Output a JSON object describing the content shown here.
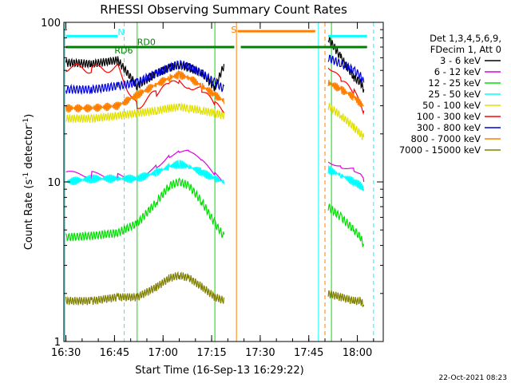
{
  "chart_data": {
    "type": "line",
    "title": "RHESSI Observing Summary Count Rates",
    "xlabel": "Start Time (16-Sep-13 16:29:22)",
    "ylabel_main": "Count Rate (s",
    "ylabel_sup": "-1",
    "ylabel_tail": " detector",
    "ylabel_close": ")",
    "y_scale": "log",
    "ylim": [
      1,
      100
    ],
    "xlim": [
      "16:29:22",
      "18:08:00"
    ],
    "x_ticks": [
      "16:30",
      "16:45",
      "17:00",
      "17:15",
      "17:30",
      "17:45",
      "18:00"
    ],
    "y_ticks": [
      "1",
      "10",
      "100"
    ],
    "legend_header": [
      "Det 1,3,4,5,6,9,",
      "FDecim 1, Att 0"
    ],
    "legend_position": "right",
    "series": [
      {
        "name": "3 - 6 keV",
        "color": "#000000",
        "t": [
          "16:30",
          "16:38",
          "16:46",
          "16:52",
          "16:58",
          "17:02",
          "17:05",
          "17:08",
          "17:12",
          "17:16",
          "17:19",
          "17:51",
          "17:55",
          "17:59",
          "18:01",
          "18:02"
        ],
        "values": [
          56,
          55,
          58,
          40,
          48,
          52,
          54,
          52,
          48,
          39,
          55,
          80,
          60,
          45,
          42,
          38
        ]
      },
      {
        "name": "6 - 12 keV",
        "color": "#e000e0",
        "t": [
          "16:30",
          "16:38",
          "16:46",
          "16:52",
          "16:58",
          "17:02",
          "17:05",
          "17:08",
          "17:12",
          "17:16",
          "17:19",
          "17:51",
          "17:55",
          "17:59",
          "18:01",
          "18:02"
        ],
        "values": [
          11,
          11,
          11,
          11,
          13,
          15,
          15.5,
          15,
          13,
          11,
          10,
          14,
          13,
          12,
          11,
          10
        ]
      },
      {
        "name": "12 - 25 keV",
        "color": "#00e000",
        "t": [
          "16:30",
          "16:38",
          "16:46",
          "16:52",
          "16:58",
          "17:02",
          "17:05",
          "17:08",
          "17:12",
          "17:16",
          "17:19",
          "17:51",
          "17:55",
          "17:59",
          "18:01",
          "18:02"
        ],
        "values": [
          4.5,
          4.6,
          4.8,
          5.5,
          7.5,
          9.5,
          10,
          9.5,
          7.5,
          5.5,
          4.5,
          7,
          6,
          5,
          4.5,
          4
        ]
      },
      {
        "name": "25 - 50 keV",
        "color": "#00ffff",
        "t": [
          "16:30",
          "16:38",
          "16:46",
          "16:52",
          "16:58",
          "17:02",
          "17:05",
          "17:08",
          "17:12",
          "17:16",
          "17:19",
          "17:51",
          "17:55",
          "17:59",
          "18:01",
          "18:02"
        ],
        "values": [
          10,
          10.5,
          10.5,
          10.5,
          11.5,
          12.5,
          13,
          12.5,
          11.5,
          10.5,
          10,
          12,
          11,
          10,
          9.5,
          9
        ]
      },
      {
        "name": "50 - 100 keV",
        "color": "#e0e000",
        "t": [
          "16:30",
          "16:38",
          "16:46",
          "16:52",
          "16:58",
          "17:02",
          "17:05",
          "17:08",
          "17:12",
          "17:16",
          "17:19",
          "17:51",
          "17:55",
          "17:59",
          "18:01",
          "18:02"
        ],
        "values": [
          25,
          25,
          26,
          27,
          28,
          29,
          29.5,
          29,
          28,
          27,
          26,
          30,
          26,
          22,
          20,
          19
        ]
      },
      {
        "name": "100 - 300 keV",
        "color": "#ff0000",
        "t": [
          "16:30",
          "16:38",
          "16:46",
          "16:52",
          "16:58",
          "17:02",
          "17:05",
          "17:08",
          "17:12",
          "17:16",
          "17:19",
          "17:51",
          "17:55",
          "17:59",
          "18:01",
          "18:02"
        ],
        "values": [
          52,
          51,
          52,
          30,
          36,
          40,
          42,
          41,
          37,
          30,
          28,
          55,
          42,
          36,
          32,
          28
        ]
      },
      {
        "name": "300 - 800 keV",
        "color": "#0000e0",
        "t": [
          "16:30",
          "16:38",
          "16:46",
          "16:52",
          "16:58",
          "17:02",
          "17:05",
          "17:08",
          "17:12",
          "17:16",
          "17:19",
          "17:51",
          "17:55",
          "17:59",
          "18:01",
          "18:02"
        ],
        "values": [
          38,
          38,
          40,
          42,
          48,
          52,
          55,
          53,
          48,
          42,
          38,
          60,
          55,
          50,
          46,
          42
        ]
      },
      {
        "name": "800 - 7000 keV",
        "color": "#ff8000",
        "t": [
          "16:30",
          "16:38",
          "16:46",
          "16:52",
          "16:58",
          "17:02",
          "17:05",
          "17:08",
          "17:12",
          "17:16",
          "17:19",
          "17:51",
          "17:55",
          "17:59",
          "18:01",
          "18:02"
        ],
        "values": [
          29,
          29,
          30,
          35,
          41,
          45,
          47,
          45,
          40,
          35,
          32,
          42,
          38,
          34,
          31,
          30
        ]
      },
      {
        "name": "7000 - 15000 keV",
        "color": "#808000",
        "t": [
          "16:30",
          "16:38",
          "16:46",
          "16:52",
          "16:58",
          "17:02",
          "17:05",
          "17:08",
          "17:12",
          "17:16",
          "17:19",
          "17:51",
          "17:55",
          "17:59",
          "18:01",
          "18:02"
        ],
        "values": [
          1.8,
          1.8,
          1.9,
          1.9,
          2.2,
          2.5,
          2.6,
          2.5,
          2.2,
          1.9,
          1.8,
          2.0,
          1.9,
          1.8,
          1.8,
          1.7
        ]
      }
    ],
    "annotations": [
      {
        "text": "N",
        "color": "#00ffff"
      },
      {
        "text": "RD6",
        "color": "#008000"
      },
      {
        "text": "RD0",
        "color": "#008000"
      },
      {
        "text": "S",
        "color": "#ff8000"
      }
    ],
    "flag_bars": [
      {
        "name": "N",
        "color": "#00ffff",
        "y": 82,
        "segments": [
          [
            "16:30",
            "16:46"
          ],
          [
            "17:51",
            "18:03"
          ]
        ]
      },
      {
        "name": "RD",
        "color": "#008000",
        "y": 70,
        "segments": [
          [
            "16:30",
            "17:22"
          ],
          [
            "17:24",
            "18:03"
          ]
        ]
      },
      {
        "name": "S",
        "color": "#ff8000",
        "y": 88,
        "segments": [
          [
            "17:23",
            "17:47"
          ]
        ]
      }
    ],
    "event_lines": [
      {
        "t": "16:29:40",
        "color": "#00ffff",
        "style": "solid"
      },
      {
        "t": "16:48:00",
        "color": "#00ffff",
        "style": "dashed"
      },
      {
        "t": "16:52:00",
        "color": "#00e000",
        "style": "solid"
      },
      {
        "t": "17:16:00",
        "color": "#00e000",
        "style": "solid"
      },
      {
        "t": "17:22:40",
        "color": "#ff8000",
        "style": "solid"
      },
      {
        "t": "17:48:00",
        "color": "#00ffff",
        "style": "solid"
      },
      {
        "t": "17:50:00",
        "color": "#ff8000",
        "style": "dashed"
      },
      {
        "t": "17:52:00",
        "color": "#00e000",
        "style": "solid"
      },
      {
        "t": "18:05:00",
        "color": "#00ffff",
        "style": "dashed"
      }
    ]
  },
  "stamp": "22-Oct-2021 08:23"
}
